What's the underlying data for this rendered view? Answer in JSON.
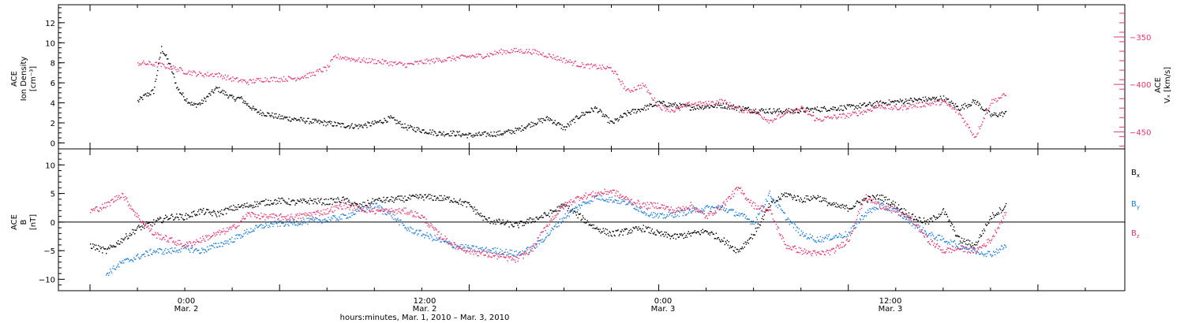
{
  "colors": {
    "black": "#000000",
    "pink": "#e8336b",
    "blue": "#1b7fdc"
  },
  "chart_data": [
    {
      "type": "scatter",
      "panel": "top",
      "ylabel_left": [
        "ACE",
        "Ion Density",
        "[cm⁻³]"
      ],
      "ylabel_right": [
        "ACE",
        "Vₓ [km/s]"
      ],
      "ylim_left": [
        -0.6,
        13.8
      ],
      "ylim_right": [
        -468,
        -316
      ],
      "yticks_left": [
        "0",
        "2",
        "4",
        "6",
        "8",
        "10",
        "12"
      ],
      "yticks_right": [
        "−450",
        "−400",
        "−350"
      ],
      "series": [
        {
          "axis": "left",
          "color": "black",
          "x": [
            -9,
            -8.5,
            -8,
            -7.5,
            -7,
            -6.5,
            -6,
            -5.5,
            -5,
            -4.5,
            -4,
            -3.5,
            -3,
            -2.5,
            -2,
            -1.5,
            -1,
            -0.5,
            0,
            1,
            2,
            3,
            4,
            5,
            6,
            7,
            8,
            9,
            10,
            11,
            12,
            13,
            14,
            15,
            16,
            17,
            18,
            19,
            20,
            21,
            22,
            23,
            24,
            26,
            28,
            30,
            32,
            34,
            36,
            38,
            40,
            42,
            43,
            44,
            45,
            46
          ],
          "y": [
            4.2,
            4.8,
            5.2,
            9.5,
            8.0,
            5.5,
            4.5,
            3.8,
            4.0,
            4.8,
            5.5,
            5.0,
            4.5,
            4.5,
            3.8,
            3.2,
            3.0,
            2.8,
            2.6,
            2.4,
            2.2,
            2.0,
            1.8,
            1.7,
            2.0,
            2.5,
            1.6,
            1.3,
            1.0,
            1.0,
            0.8,
            0.9,
            1.0,
            1.3,
            2.0,
            2.5,
            1.5,
            2.8,
            3.5,
            2.0,
            3.0,
            3.5,
            4.0,
            3.6,
            3.8,
            3.3,
            3.2,
            3.4,
            3.6,
            4.0,
            4.3,
            4.5,
            3.5,
            4.2,
            2.8,
            3.0
          ]
        },
        {
          "axis": "right",
          "color": "pink",
          "x": [
            -9,
            -8,
            -7,
            -6,
            -5,
            -4,
            -3,
            -2,
            -1,
            0,
            1,
            2,
            3,
            3.5,
            4,
            5,
            6,
            7,
            8,
            9,
            10,
            11,
            12,
            13,
            14,
            15,
            16,
            17,
            18,
            19,
            20,
            21,
            22,
            23,
            24,
            25,
            26,
            27,
            28,
            29,
            30,
            31,
            32,
            33,
            34,
            35,
            36,
            37,
            38,
            39,
            40,
            41,
            42,
            43,
            44,
            45,
            46
          ],
          "y": [
            -377,
            -378,
            -381,
            -386,
            -389,
            -389,
            -394,
            -397,
            -394,
            -394,
            -393,
            -389,
            -382,
            -370,
            -371,
            -374,
            -375,
            -377,
            -379,
            -376,
            -374,
            -372,
            -370,
            -369,
            -365,
            -364,
            -365,
            -369,
            -374,
            -379,
            -381,
            -383,
            -407,
            -400,
            -423,
            -427,
            -420,
            -420,
            -417,
            -426,
            -428,
            -438,
            -430,
            -425,
            -437,
            -434,
            -432,
            -428,
            -422,
            -425,
            -422,
            -420,
            -418,
            -430,
            -455,
            -418,
            -410
          ]
        }
      ]
    },
    {
      "type": "scatter",
      "panel": "bottom",
      "ylabel": [
        "ACE",
        "B",
        "[nT]"
      ],
      "ylim": [
        -12,
        12.8
      ],
      "yticks": [
        "−10",
        "−5",
        "0",
        "5",
        "10"
      ],
      "series": [
        {
          "name": "Bₓ",
          "color": "black",
          "x": [
            -12,
            -11,
            -10,
            -9,
            -8,
            -7,
            -6,
            -5,
            -4,
            -3,
            -2,
            -1,
            0,
            1,
            2,
            3,
            4,
            5,
            6,
            7,
            8,
            9,
            10,
            11,
            12,
            13,
            14,
            15,
            16,
            17,
            18,
            19,
            20,
            21,
            22,
            23,
            24,
            25,
            26,
            27,
            28,
            29,
            30,
            31,
            32,
            33,
            34,
            35,
            36,
            37,
            38,
            39,
            40,
            41,
            42,
            43,
            44,
            45,
            46
          ],
          "y": [
            -4,
            -5,
            -3,
            -1,
            0,
            1,
            1,
            2,
            1.5,
            2.5,
            3,
            3.5,
            3.8,
            3.5,
            3.8,
            3.6,
            4,
            2.8,
            3.8,
            4,
            4.2,
            4.5,
            4.3,
            4,
            3,
            0.5,
            0,
            -0.5,
            0.5,
            1.5,
            3,
            1,
            -1,
            -2,
            -1.5,
            -1,
            -2,
            -2.5,
            -2,
            -1.5,
            -3,
            -5,
            -2,
            3,
            5,
            4,
            4.5,
            3,
            2.5,
            4,
            4.5,
            3,
            1,
            0,
            2,
            -3,
            -4,
            1,
            3
          ]
        },
        {
          "name": "Bᵧ",
          "color": "blue",
          "x": [
            -11,
            -10,
            -9,
            -8,
            -7,
            -6,
            -5,
            -4,
            -3,
            -2,
            -1,
            0,
            1,
            2,
            3,
            4,
            5,
            6,
            7,
            8,
            9,
            10,
            11,
            12,
            13,
            14,
            15,
            16,
            17,
            18,
            19,
            20,
            21,
            22,
            23,
            24,
            25,
            26,
            27,
            28,
            29,
            30,
            31,
            32,
            33,
            34,
            35,
            36,
            37,
            38,
            39,
            40,
            41,
            42,
            43,
            44,
            45,
            46
          ],
          "y": [
            -9,
            -7,
            -6,
            -5,
            -5,
            -4.5,
            -5,
            -4,
            -3,
            -1.5,
            -0.5,
            -0.2,
            0,
            0.3,
            0.5,
            1,
            2,
            3,
            1.5,
            -1,
            -2,
            -3,
            -4,
            -4.5,
            -4.8,
            -5,
            -5.5,
            -4.5,
            -2,
            1,
            3,
            4.5,
            4,
            3.5,
            2,
            1,
            1.5,
            2,
            2.5,
            2.5,
            1.5,
            0,
            5,
            1,
            -2,
            -3,
            -2.5,
            -2,
            1.5,
            3,
            2,
            0,
            -2,
            -3,
            -4,
            -5,
            -5.5,
            -4
          ]
        },
        {
          "name": "B_z",
          "color": "pink",
          "x": [
            -12,
            -11,
            -10,
            -9,
            -8,
            -7,
            -6,
            -5,
            -4,
            -3,
            -2,
            -1,
            0,
            1,
            2,
            3,
            4,
            5,
            6,
            7,
            8,
            9,
            10,
            11,
            12,
            13,
            14,
            15,
            16,
            17,
            18,
            19,
            20,
            21,
            22,
            23,
            24,
            25,
            26,
            27,
            28,
            29,
            30,
            31,
            32,
            33,
            34,
            35,
            36,
            37,
            38,
            39,
            40,
            41,
            42,
            43,
            44,
            45,
            46
          ],
          "y": [
            2,
            3,
            5,
            1,
            -2,
            -3,
            -4,
            -3,
            -2,
            -1,
            1.5,
            1,
            1,
            1,
            1.5,
            2,
            3,
            2.5,
            2,
            2,
            2,
            1,
            -2,
            -4,
            -5,
            -5.5,
            -6,
            -6.5,
            -4.5,
            0,
            3,
            4.5,
            5,
            5.5,
            4,
            3,
            3,
            2,
            3,
            1,
            3,
            6,
            3,
            2,
            -4,
            -5,
            -5.5,
            -5,
            -3,
            4.5,
            3,
            2,
            0.5,
            -3,
            -5,
            -4.5,
            -5,
            -3,
            2
          ]
        }
      ]
    }
  ],
  "legend": {
    "bx": "B",
    "bx_sub": "x",
    "by": "B",
    "by_sub": "y",
    "bz": "B",
    "bz_sub": "z"
  },
  "xaxis": {
    "ticks": [
      {
        "time": "0:00",
        "date": "Mar. 2"
      },
      {
        "time": "12:00",
        "date": "Mar. 2"
      },
      {
        "time": "0:00",
        "date": "Mar. 3"
      },
      {
        "time": "12:00",
        "date": "Mar. 3"
      }
    ],
    "title": "hours:minutes, Mar.  1, 2010 – Mar.  3, 2010"
  }
}
